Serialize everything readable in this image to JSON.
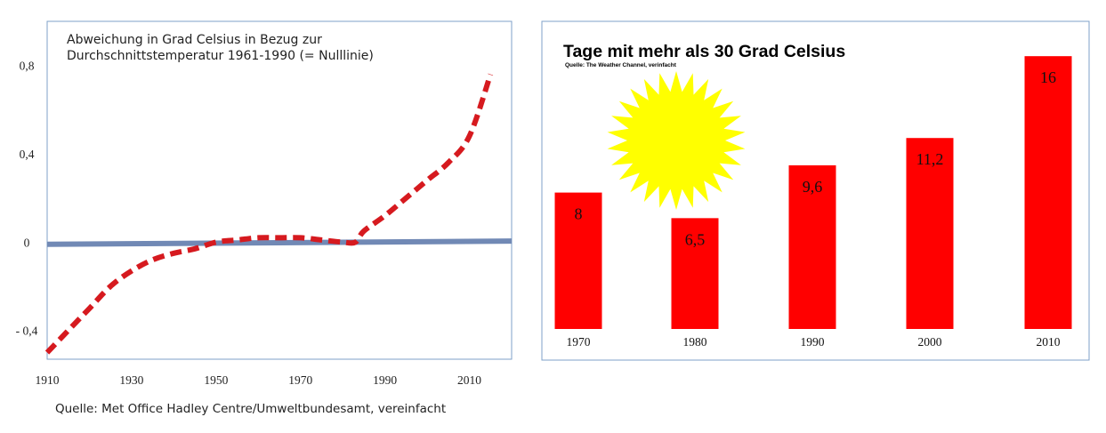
{
  "chart_data": [
    {
      "type": "line",
      "title": "Abweichung in Grad Celsius in Bezug zur Durchschnittstemperatur 1961-1990 (= Nulllinie)",
      "title_lines": [
        "Abweichung in Grad Celsius in Bezug zur",
        "Durchschnittstemperatur 1961-1990 (= Nulllinie)"
      ],
      "source": "Quelle: Met Office Hadley Centre/Umweltbundesamt, vereinfacht",
      "x_ticks": [
        "1910",
        "1930",
        "1950",
        "1970",
        "1990",
        "2010"
      ],
      "y_ticks": [
        "0,8",
        "0,4",
        "0",
        "- 0,4"
      ],
      "y_tick_values": [
        0.8,
        0.4,
        0,
        -0.4
      ],
      "xlim": [
        1910,
        2020
      ],
      "ylim": [
        -0.53,
        1.0
      ],
      "grid": false,
      "series": [
        {
          "style": "dashed",
          "color": "#d61a1f",
          "x": [
            1910,
            1915,
            1920,
            1925,
            1930,
            1935,
            1940,
            1945,
            1950,
            1955,
            1960,
            1965,
            1970,
            1975,
            1980,
            1983,
            1985,
            1990,
            1995,
            2000,
            2005,
            2010,
            2015
          ],
          "y": [
            -0.5,
            -0.4,
            -0.3,
            -0.2,
            -0.13,
            -0.08,
            -0.05,
            -0.03,
            0.0,
            0.01,
            0.02,
            0.02,
            0.02,
            0.01,
            0.0,
            0.0,
            0.05,
            0.12,
            0.2,
            0.28,
            0.36,
            0.48,
            0.76
          ]
        },
        {
          "style": "solid",
          "color": "#7189b5",
          "x": [
            1910,
            2020
          ],
          "y": [
            -0.01,
            0.005
          ]
        }
      ]
    },
    {
      "type": "bar",
      "title": "Tage mit mehr als 30 Grad Celsius",
      "source": "Quelle: The Weather Channel, verinfacht",
      "categories": [
        "1970",
        "1980",
        "1990",
        "2000",
        "2010"
      ],
      "values": [
        8,
        6.5,
        9.6,
        11.2,
        16
      ],
      "value_labels": [
        "8",
        "6,5",
        "9,6",
        "11,2",
        "16"
      ],
      "bar_color": "#ff0000",
      "ylim": [
        0,
        17
      ],
      "grid": false,
      "decoration": "sun-icon",
      "decoration_color": "#ffff00"
    }
  ]
}
